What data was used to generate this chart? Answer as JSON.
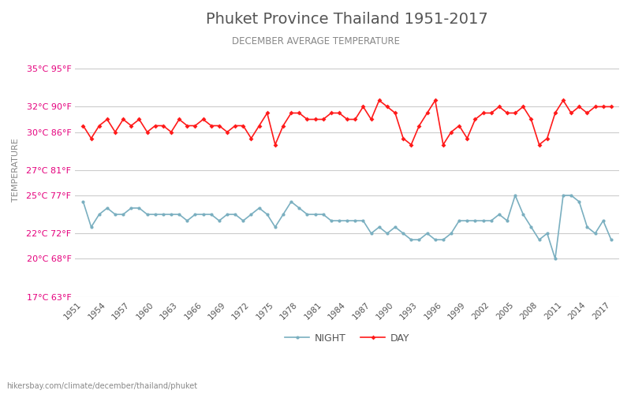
{
  "title": "Phuket Province Thailand 1951-2017",
  "subtitle": "DECEMBER AVERAGE TEMPERATURE",
  "ylabel": "TEMPERATURE",
  "footer": "hikersbay.com/climate/december/thailand/phuket",
  "years": [
    1951,
    1952,
    1953,
    1954,
    1955,
    1956,
    1957,
    1958,
    1959,
    1960,
    1961,
    1962,
    1963,
    1964,
    1965,
    1966,
    1967,
    1968,
    1969,
    1970,
    1971,
    1972,
    1973,
    1974,
    1975,
    1976,
    1977,
    1978,
    1979,
    1980,
    1981,
    1982,
    1983,
    1984,
    1985,
    1986,
    1987,
    1988,
    1989,
    1990,
    1991,
    1992,
    1993,
    1994,
    1995,
    1996,
    1997,
    1998,
    1999,
    2000,
    2001,
    2002,
    2003,
    2004,
    2005,
    2006,
    2007,
    2008,
    2009,
    2010,
    2011,
    2012,
    2013,
    2014,
    2015,
    2016,
    2017
  ],
  "day": [
    30.5,
    29.5,
    30.5,
    31.0,
    30.0,
    31.0,
    30.5,
    31.0,
    30.0,
    30.5,
    30.5,
    30.0,
    31.0,
    30.5,
    30.5,
    31.0,
    30.5,
    30.5,
    30.0,
    30.5,
    30.5,
    29.5,
    30.5,
    31.5,
    29.0,
    30.5,
    31.5,
    31.5,
    31.0,
    31.0,
    31.0,
    31.5,
    31.5,
    31.0,
    31.0,
    32.0,
    31.0,
    32.5,
    32.0,
    31.5,
    29.5,
    29.0,
    30.5,
    31.5,
    32.5,
    29.0,
    30.0,
    30.5,
    29.5,
    31.0,
    31.5,
    31.5,
    32.0,
    31.5,
    31.5,
    32.0,
    31.0,
    29.0,
    29.5,
    31.5,
    32.5,
    31.5,
    32.0,
    31.5,
    32.0,
    32.0,
    32.0
  ],
  "night": [
    24.5,
    22.5,
    23.5,
    24.0,
    23.5,
    23.5,
    24.0,
    24.0,
    23.5,
    23.5,
    23.5,
    23.5,
    23.5,
    23.0,
    23.5,
    23.5,
    23.5,
    23.0,
    23.5,
    23.5,
    23.0,
    23.5,
    24.0,
    23.5,
    22.5,
    23.5,
    24.5,
    24.0,
    23.5,
    23.5,
    23.5,
    23.0,
    23.0,
    23.0,
    23.0,
    23.0,
    22.0,
    22.5,
    22.0,
    22.5,
    22.0,
    21.5,
    21.5,
    22.0,
    21.5,
    21.5,
    22.0,
    23.0,
    23.0,
    23.0,
    23.0,
    23.0,
    23.5,
    23.0,
    25.0,
    23.5,
    22.5,
    21.5,
    22.0,
    20.0,
    25.0,
    25.0,
    24.5,
    22.5,
    22.0,
    23.0,
    21.5
  ],
  "day_color": "#ff1a1a",
  "night_color": "#7aafc0",
  "background_color": "#ffffff",
  "grid_color": "#cccccc",
  "title_color": "#555555",
  "subtitle_color": "#888888",
  "ylabel_color": "#888888",
  "tick_label_color_left": "#e5007d",
  "tick_label_color_right": "#e5007d",
  "ylim_celsius": [
    17,
    37
  ],
  "yticks_celsius": [
    17,
    20,
    22,
    25,
    27,
    30,
    32,
    35
  ],
  "yticks_fahrenheit": [
    63,
    68,
    72,
    77,
    81,
    86,
    90,
    95
  ],
  "xtick_years": [
    1951,
    1954,
    1957,
    1960,
    1963,
    1966,
    1969,
    1972,
    1975,
    1978,
    1981,
    1984,
    1987,
    1990,
    1993,
    1996,
    1999,
    2002,
    2005,
    2008,
    2011,
    2014,
    2017
  ],
  "legend_night": "NIGHT",
  "legend_day": "DAY",
  "marker_size": 3,
  "line_width": 1.2
}
